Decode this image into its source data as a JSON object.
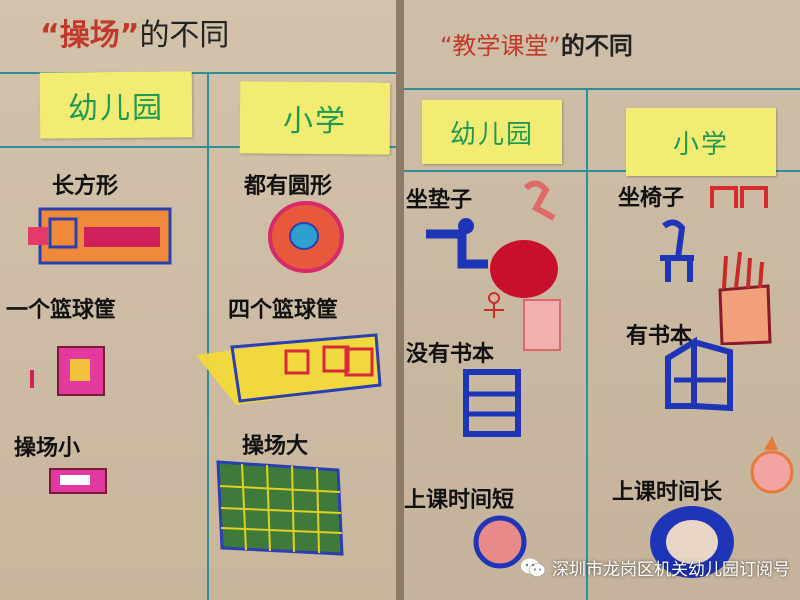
{
  "left_board": {
    "title_quoted": "“操场”",
    "title_rest": "的不同",
    "columns": [
      "幼儿园",
      "小学"
    ],
    "rows": [
      {
        "kindergarten": "长方形",
        "primary": "都有圆形"
      },
      {
        "kindergarten": "一个篮球筐",
        "primary": "四个篮球筐"
      },
      {
        "kindergarten": "操场小",
        "primary": "操场大"
      }
    ]
  },
  "right_board": {
    "title_quoted": "“教学课堂”",
    "title_rest": "的不同",
    "columns": [
      "幼儿园",
      "小学"
    ],
    "rows": [
      {
        "kindergarten": "坐垫子",
        "primary": "坐椅子"
      },
      {
        "kindergarten": "没有书本",
        "primary": "有书本"
      },
      {
        "kindergarten": "上课时间短",
        "primary": "上课时间长"
      }
    ]
  },
  "watermark": {
    "text": "深圳市龙岗区机关幼儿园订阅号",
    "icon": "wechat-icon"
  },
  "colors": {
    "grid_line": "#2f8f98",
    "sticky_note": "#f2ec73",
    "note_text": "#1e9a55",
    "cardboard": "#cdbda6"
  }
}
